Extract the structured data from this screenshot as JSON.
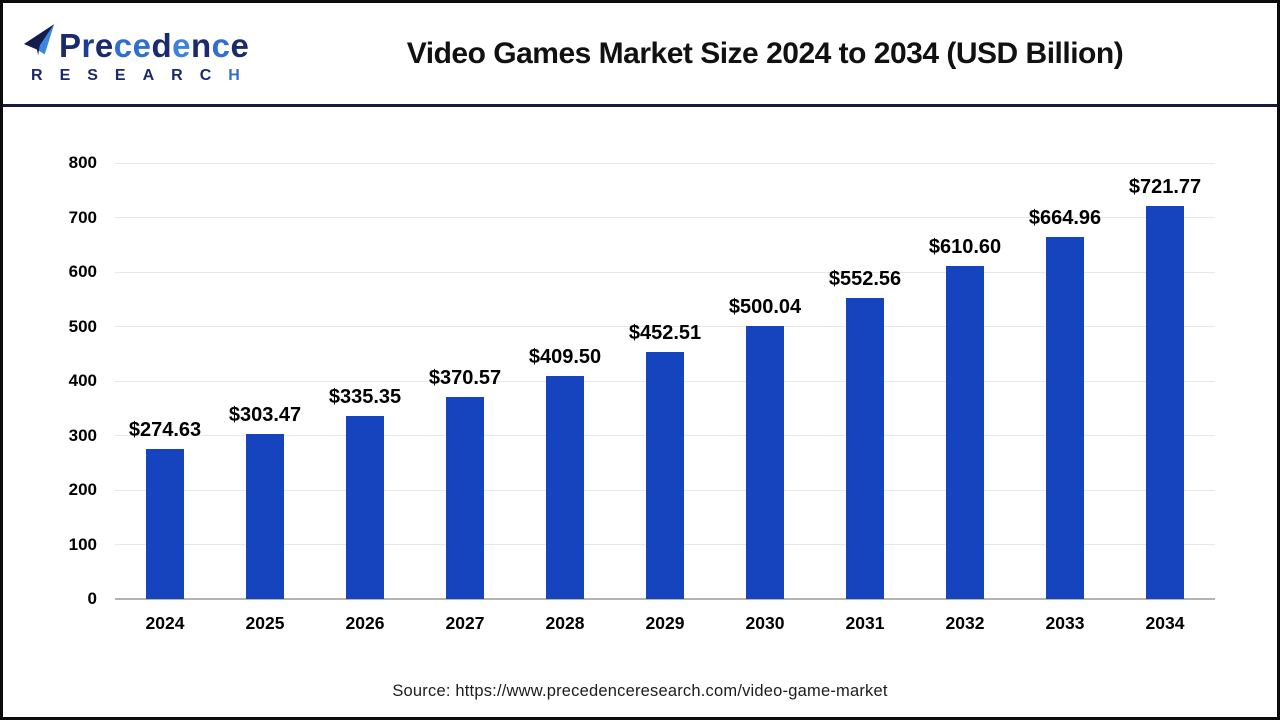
{
  "header": {
    "logo": {
      "text": "Precedence",
      "subtext": "RESEARCH"
    },
    "title": "Video Games Market Size 2024 to 2034 (USD Billion)"
  },
  "chart_data": {
    "type": "bar",
    "title": "Video Games Market Size 2024 to 2034 (USD Billion)",
    "unit": "USD Billion",
    "categories": [
      "2024",
      "2025",
      "2026",
      "2027",
      "2028",
      "2029",
      "2030",
      "2031",
      "2032",
      "2033",
      "2034"
    ],
    "values": [
      274.63,
      303.47,
      335.35,
      370.57,
      409.5,
      452.51,
      500.04,
      552.56,
      610.6,
      664.96,
      721.77
    ],
    "value_labels": [
      "$274.63",
      "$303.47",
      "$335.35",
      "$370.57",
      "$409.50",
      "$452.51",
      "$500.04",
      "$552.56",
      "$610.60",
      "$664.96",
      "$721.77"
    ],
    "xlabel": "",
    "ylabel": "",
    "ylim": [
      0,
      800
    ],
    "yticks": [
      0,
      100,
      200,
      300,
      400,
      500,
      600,
      700,
      800
    ],
    "grid": true,
    "legend": "none"
  },
  "footer": {
    "source": "Source: https://www.precedenceresearch.com/video-game-market"
  },
  "colors": {
    "bar": "#1544BE",
    "gridline": "#e8e8e8",
    "baseline": "#b3b3b3",
    "header_divider": "#141b3d",
    "frame_border": "#0b0b0b",
    "logo_navy": "#1a2a6c",
    "logo_blue": "#2e6fcf",
    "title_text": "#111111",
    "logo_letter_colors": [
      "#1a2a6c",
      "#1e3c92",
      "#1a2a6c",
      "#2e6fcf",
      "#2e6fcf",
      "#1a2a6c",
      "#3b82dd",
      "#1a2a6c",
      "#2e6fcf",
      "#1a2a6c"
    ]
  }
}
